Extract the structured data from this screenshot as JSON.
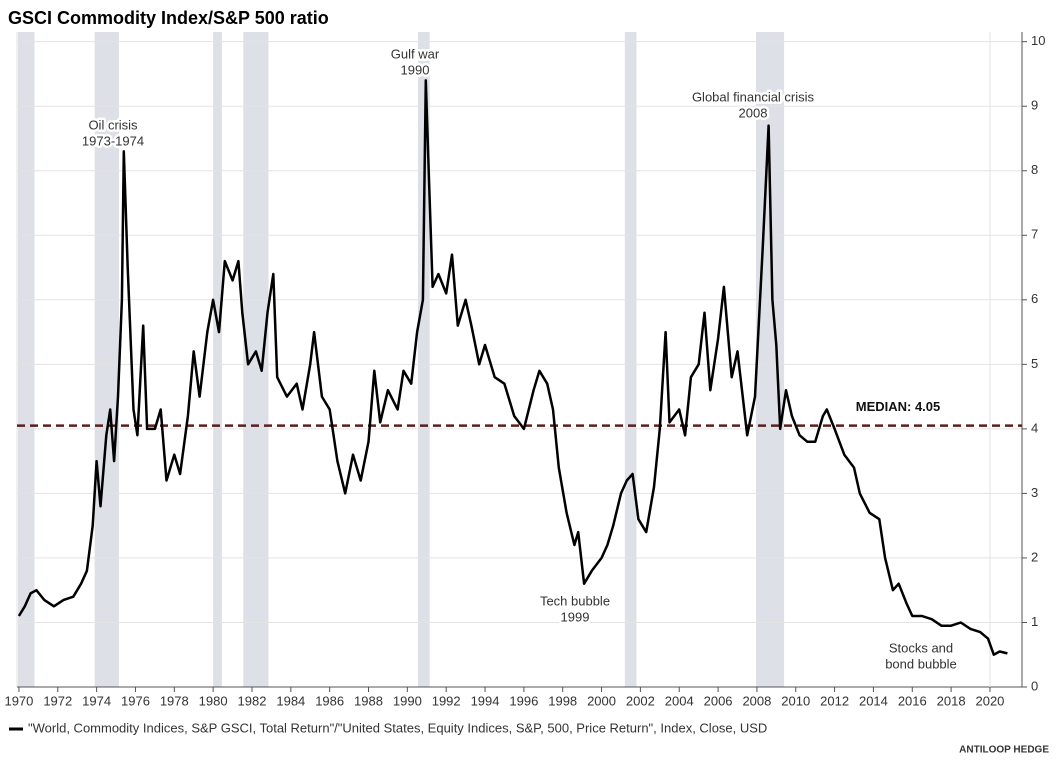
{
  "chart_data": {
    "type": "line",
    "title": "GSCI Commodity Index/S&P 500 ratio",
    "source": "ANTILOOP HEDGE",
    "xlim": [
      1969.9,
      2021.65
    ],
    "xticks": [
      1970,
      1972,
      1974,
      1976,
      1978,
      1980,
      1982,
      1984,
      1986,
      1988,
      1990,
      1992,
      1994,
      1996,
      1998,
      2000,
      2002,
      2004,
      2006,
      2008,
      2010,
      2012,
      2014,
      2016,
      2018,
      2020
    ],
    "ylim": [
      0,
      10.15
    ],
    "yticks": [
      0,
      1,
      2,
      3,
      4,
      5,
      6,
      7,
      8,
      9,
      10
    ],
    "grid": true,
    "bands": [
      [
        1969.95,
        1970.8
      ],
      [
        1973.9,
        1975.15
      ],
      [
        1980.0,
        1980.45
      ],
      [
        1981.55,
        1982.85
      ],
      [
        1990.55,
        1991.15
      ],
      [
        2001.2,
        2001.8
      ],
      [
        2007.95,
        2009.4
      ]
    ],
    "median": {
      "label": "MEDIAN: 4.05",
      "value": 4.05,
      "color": "#5a1f1f"
    },
    "annotations": [
      {
        "lines": [
          "Oil crisis",
          "1973-1974"
        ]
      },
      {
        "lines": [
          "Gulf war",
          "1990"
        ]
      },
      {
        "lines": [
          "Global financial crisis",
          "2008"
        ]
      },
      {
        "lines": [
          "Tech bubble",
          "1999"
        ]
      },
      {
        "lines": [
          "Stocks and",
          "bond bubble"
        ]
      }
    ],
    "x": [
      1970.0,
      1970.3,
      1970.6,
      1970.9,
      1971.3,
      1971.8,
      1972.3,
      1972.8,
      1973.2,
      1973.5,
      1973.8,
      1974.0,
      1974.2,
      1974.5,
      1974.7,
      1974.9,
      1975.1,
      1975.3,
      1975.4,
      1975.6,
      1975.9,
      1976.1,
      1976.4,
      1976.6,
      1977.0,
      1977.3,
      1977.6,
      1978.0,
      1978.3,
      1978.7,
      1979.0,
      1979.3,
      1979.7,
      1980.0,
      1980.3,
      1980.6,
      1981.0,
      1981.3,
      1981.5,
      1981.8,
      1982.2,
      1982.5,
      1982.8,
      1983.1,
      1983.3,
      1983.8,
      1984.3,
      1984.6,
      1985.0,
      1985.2,
      1985.6,
      1986.0,
      1986.4,
      1986.8,
      1987.2,
      1987.6,
      1988.0,
      1988.3,
      1988.6,
      1989.0,
      1989.5,
      1989.8,
      1990.2,
      1990.5,
      1990.8,
      1990.95,
      1991.1,
      1991.3,
      1991.6,
      1992.0,
      1992.3,
      1992.6,
      1993.0,
      1993.3,
      1993.7,
      1994.0,
      1994.5,
      1995.0,
      1995.5,
      1996.0,
      1996.5,
      1996.8,
      1997.2,
      1997.5,
      1997.8,
      1998.2,
      1998.6,
      1998.8,
      1999.1,
      1999.5,
      2000.0,
      2000.3,
      2000.6,
      2001.0,
      2001.3,
      2001.6,
      2001.9,
      2002.3,
      2002.7,
      2003.0,
      2003.3,
      2003.5,
      2004.0,
      2004.3,
      2004.6,
      2005.0,
      2005.3,
      2005.6,
      2006.0,
      2006.3,
      2006.7,
      2007.0,
      2007.5,
      2007.9,
      2008.3,
      2008.6,
      2008.8,
      2009.0,
      2009.2,
      2009.5,
      2009.8,
      2010.2,
      2010.6,
      2011.0,
      2011.4,
      2011.6,
      2012.0,
      2012.5,
      2013.0,
      2013.3,
      2013.8,
      2014.3,
      2014.6,
      2015.0,
      2015.3,
      2015.7,
      2016.0,
      2016.5,
      2017.0,
      2017.5,
      2018.0,
      2018.5,
      2019.0,
      2019.5,
      2019.9,
      2020.2,
      2020.5,
      2020.9
    ],
    "series": [
      {
        "name": "\"World, Commodity Indices, S&P GSCI, Total Return\"/\"United States, Equity Indices, S&P, 500, Price Return\", Index, Close, USD",
        "color": "#000000",
        "values": [
          1.1,
          1.25,
          1.45,
          1.5,
          1.35,
          1.25,
          1.35,
          1.4,
          1.6,
          1.8,
          2.5,
          3.5,
          2.8,
          3.9,
          4.3,
          3.5,
          4.5,
          6.0,
          8.3,
          6.5,
          4.3,
          3.9,
          5.6,
          4.0,
          4.0,
          4.3,
          3.2,
          3.6,
          3.3,
          4.2,
          5.2,
          4.5,
          5.5,
          6.0,
          5.5,
          6.6,
          6.3,
          6.6,
          5.8,
          5.0,
          5.2,
          4.9,
          5.8,
          6.4,
          4.8,
          4.5,
          4.7,
          4.3,
          5.0,
          5.5,
          4.5,
          4.3,
          3.5,
          3.0,
          3.6,
          3.2,
          3.8,
          4.9,
          4.1,
          4.6,
          4.3,
          4.9,
          4.7,
          5.5,
          6.0,
          9.4,
          8.0,
          6.2,
          6.4,
          6.1,
          6.7,
          5.6,
          6.0,
          5.6,
          5.0,
          5.3,
          4.8,
          4.7,
          4.2,
          4.0,
          4.6,
          4.9,
          4.7,
          4.3,
          3.4,
          2.7,
          2.2,
          2.4,
          1.6,
          1.8,
          2.0,
          2.2,
          2.5,
          3.0,
          3.2,
          3.3,
          2.6,
          2.4,
          3.1,
          4.0,
          5.5,
          4.1,
          4.3,
          3.9,
          4.8,
          5.0,
          5.8,
          4.6,
          5.4,
          6.2,
          4.8,
          5.2,
          3.9,
          4.5,
          6.8,
          8.7,
          6.0,
          5.3,
          4.0,
          4.6,
          4.2,
          3.9,
          3.8,
          3.8,
          4.2,
          4.3,
          4.0,
          3.6,
          3.4,
          3.0,
          2.7,
          2.6,
          2.0,
          1.5,
          1.6,
          1.3,
          1.1,
          1.1,
          1.05,
          0.95,
          0.95,
          1.0,
          0.9,
          0.85,
          0.75,
          0.5,
          0.55,
          0.52
        ]
      }
    ]
  }
}
